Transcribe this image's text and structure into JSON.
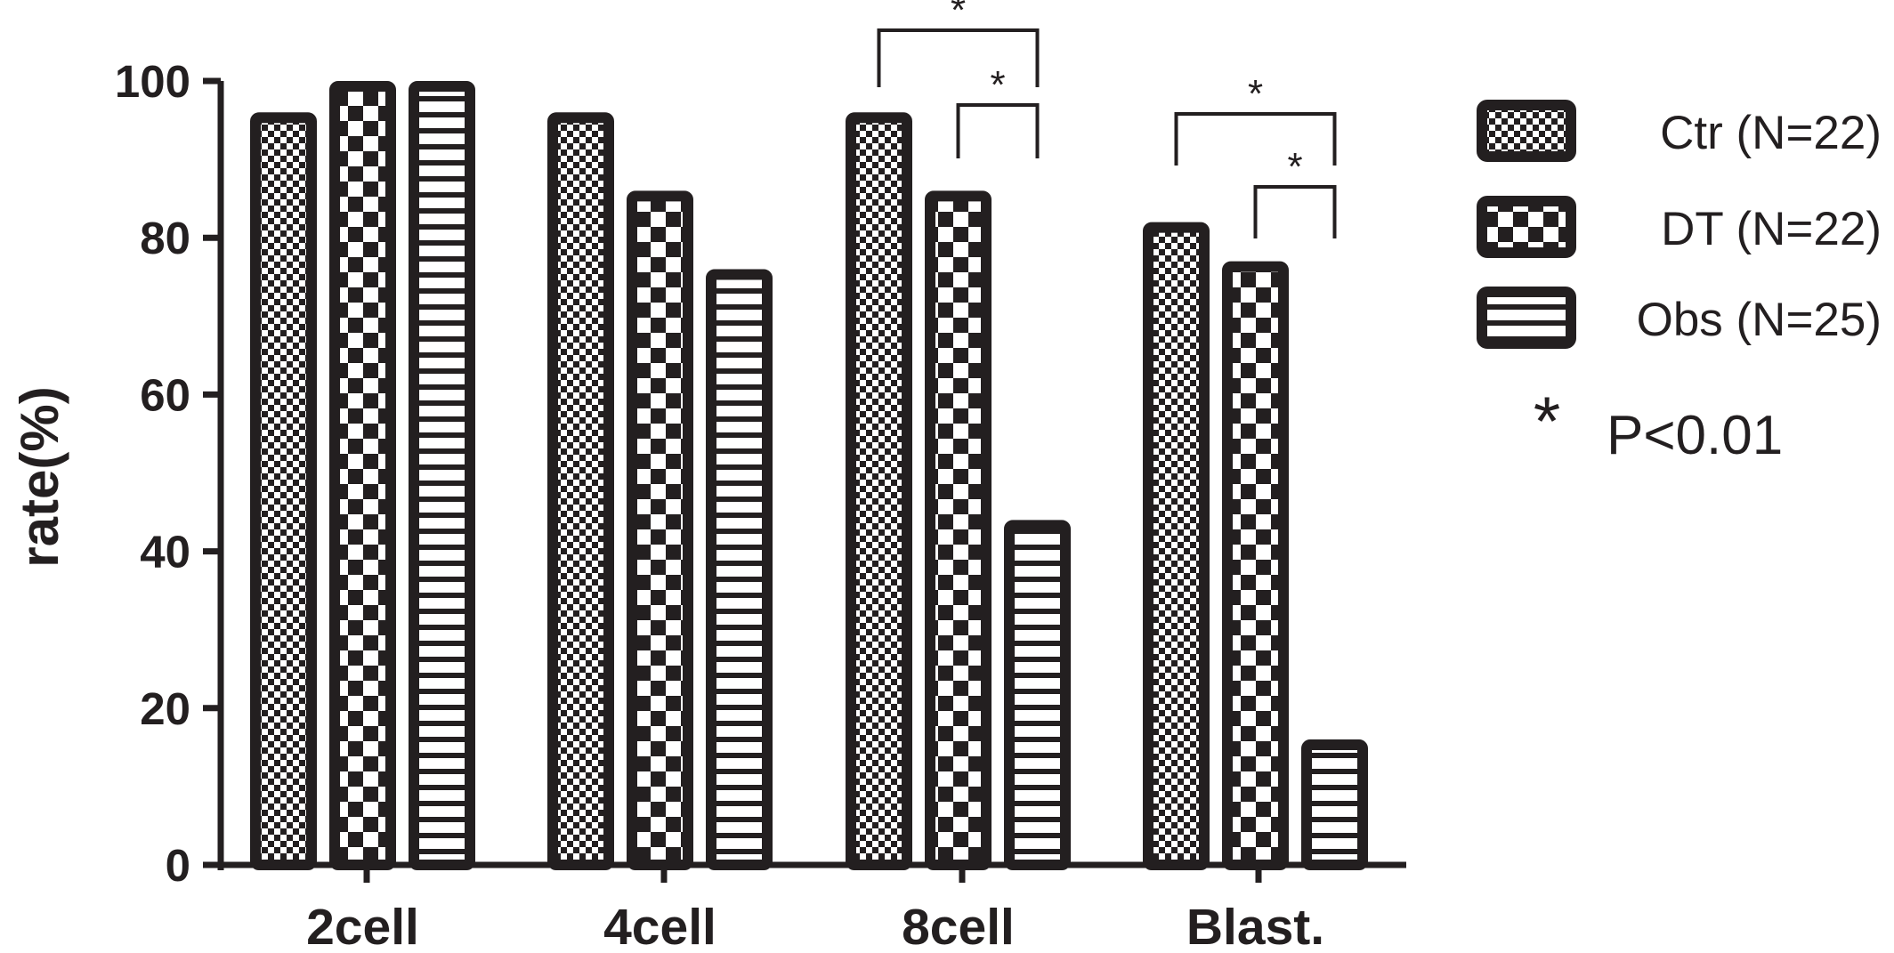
{
  "chart_data": {
    "type": "bar",
    "categories": [
      "2cell",
      "4cell",
      "8cell",
      "Blast."
    ],
    "series": [
      {
        "name": "Ctr  (N=22)",
        "pattern": "fine-checker",
        "values": [
          96,
          96,
          96,
          82
        ]
      },
      {
        "name": "DT  (N=22)",
        "pattern": "coarse-checker",
        "values": [
          100,
          86,
          86,
          77
        ]
      },
      {
        "name": "Obs  (N=25)",
        "pattern": "horizontal-stripes",
        "values": [
          100,
          76,
          44,
          16
        ]
      }
    ],
    "title": "",
    "xlabel": "",
    "ylabel": "rate(%)",
    "ylim": [
      0,
      100
    ],
    "yticks": [
      0,
      20,
      40,
      60,
      80,
      100
    ],
    "grid": false,
    "legend_position": "right",
    "significance": [
      {
        "category": "8cell",
        "from_series": 0,
        "to_series": 2,
        "label": "*"
      },
      {
        "category": "8cell",
        "from_series": 1,
        "to_series": 2,
        "label": "*"
      },
      {
        "category": "Blast.",
        "from_series": 0,
        "to_series": 2,
        "label": "*"
      },
      {
        "category": "Blast.",
        "from_series": 1,
        "to_series": 2,
        "label": "*"
      }
    ],
    "annotation": {
      "symbol": "*",
      "text": "P<0.01"
    }
  },
  "colors": {
    "ink": "#231f20",
    "background": "#ffffff"
  }
}
